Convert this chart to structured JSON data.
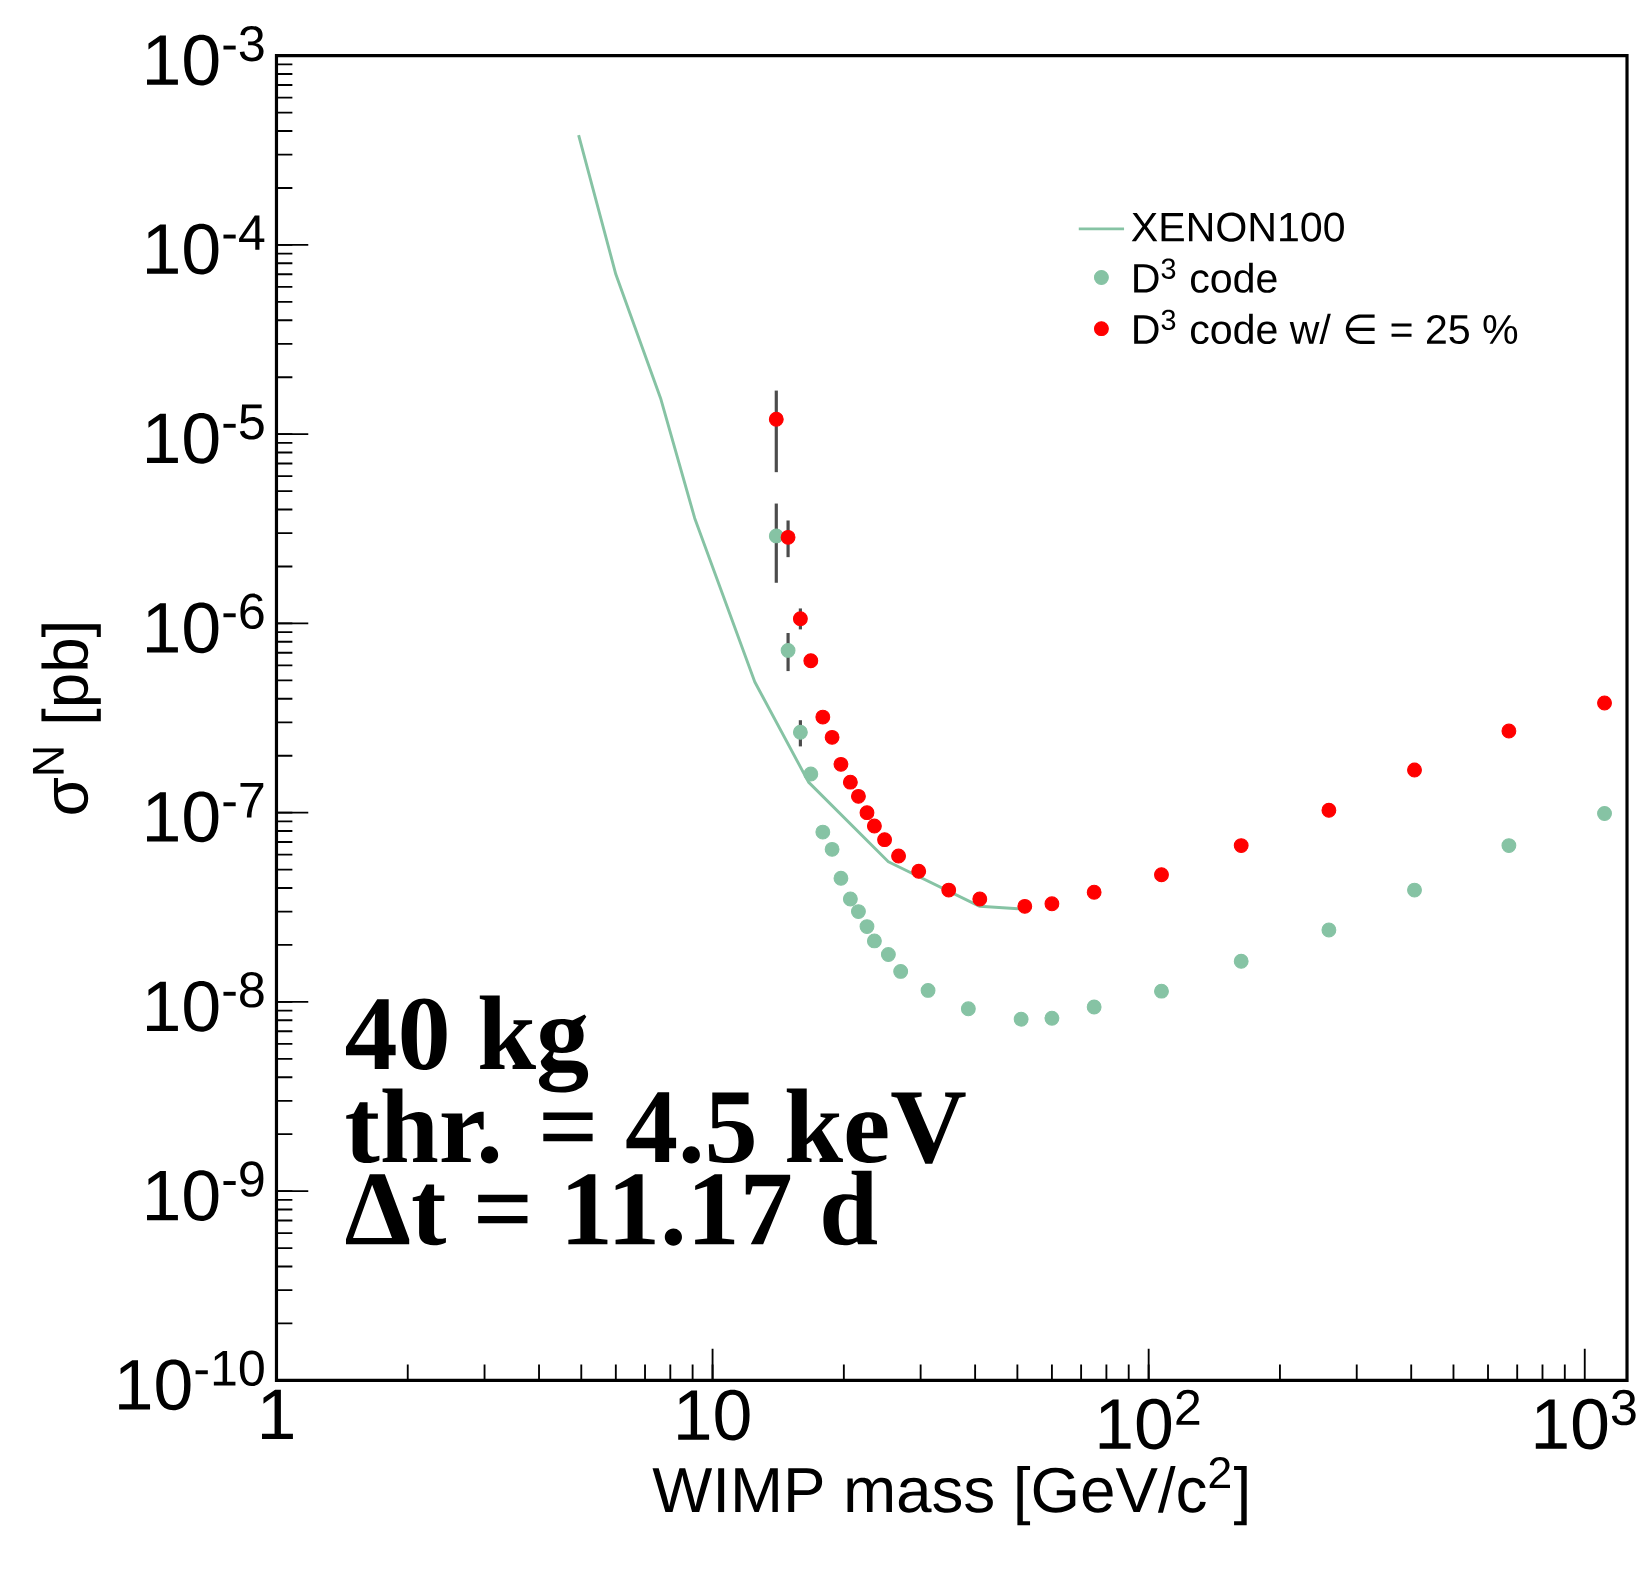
{
  "chart_data": {
    "type": "scatter",
    "xlabel": "WIMP mass [GeV/c$^{2}$]",
    "ylabel": "σ$^{N}$ [pb]",
    "log": "xy",
    "xlim": [
      1,
      1250
    ],
    "ylim": [
      1e-10,
      0.001
    ],
    "xticks": [
      1,
      10,
      {
        "value": 100,
        "label": "10$^{2}$"
      },
      {
        "value": 1000,
        "label": "10$^{3}$"
      }
    ],
    "yticks": [
      {
        "value": 1e-10,
        "label": "10$^{-10}$"
      },
      {
        "value": 1e-09,
        "label": "10$^{-9}$"
      },
      {
        "value": 1e-08,
        "label": "10$^{-8}$"
      },
      {
        "value": 1e-07,
        "label": "10$^{-7}$"
      },
      {
        "value": 1e-06,
        "label": "10$^{-6}$"
      },
      {
        "value": 1e-05,
        "label": "10$^{-5}$"
      },
      {
        "value": 0.0001,
        "label": "10$^{-4}$"
      },
      {
        "value": 0.001,
        "label": "10$^{-3}$"
      }
    ],
    "legend": "top right",
    "annotations": [
      "**40 kg**",
      "**thr. = 4.5 keV**",
      "**Δt = 11.17 d**"
    ],
    "series": [
      {
        "name": "XENON100",
        "type": "line",
        "marker": "none",
        "line_style": "solid",
        "color": "#86c3a4",
        "x": [
          4.93,
          6.0,
          7.6,
          9.1,
          12.5,
          16.6,
          25.3,
          41,
          51
        ],
        "values": [
          0.00038,
          7e-05,
          1.55e-05,
          3.6e-06,
          4.9e-07,
          1.45e-07,
          5.5e-08,
          3.2e-08,
          3.1e-08
        ]
      },
      {
        "name": "D$^{3}$ code",
        "marker": "circle",
        "color": "#86c3a4",
        "x": [
          14.0,
          14.9,
          15.9,
          16.8,
          17.9,
          18.8,
          19.7,
          20.7,
          21.6,
          22.6,
          23.5,
          25.3,
          27,
          31.2,
          38.6,
          51,
          60,
          75,
          107,
          163,
          259,
          407,
          670,
          1110
        ],
        "values": [
          2.9e-06,
          7.2e-07,
          2.66e-07,
          1.6e-07,
          7.9e-08,
          6.4e-08,
          4.5e-08,
          3.5e-08,
          3e-08,
          2.5e-08,
          2.1e-08,
          1.78e-08,
          1.45e-08,
          1.15e-08,
          9.2e-09,
          8.1e-09,
          8.2e-09,
          9.4e-09,
          1.14e-08,
          1.64e-08,
          2.4e-08,
          3.9e-08,
          6.7e-08,
          9.9e-08
        ],
        "errors": [
          [
            1.64e-06,
            4.3e-06
          ],
          [
            5.6e-07,
            8.9e-07
          ],
          [
            2.24e-07,
            3.08e-07
          ],
          null,
          null,
          null,
          null,
          null,
          null,
          null,
          null,
          null,
          null,
          null,
          null,
          null,
          null,
          null,
          null,
          null,
          null,
          null,
          null,
          null
        ]
      },
      {
        "name": "D$^{3}$ code w/ ∈ = 25 %",
        "marker": "circle",
        "color": "#ff0000",
        "x": [
          14.0,
          14.9,
          15.9,
          16.8,
          17.9,
          18.8,
          19.7,
          20.7,
          21.6,
          22.6,
          23.5,
          24.8,
          26.7,
          29.7,
          34.8,
          41,
          52,
          60,
          75,
          107,
          163,
          259,
          407,
          670,
          1110
        ],
        "values": [
          1.2e-05,
          2.85e-06,
          1.06e-06,
          6.35e-07,
          3.2e-07,
          2.5e-07,
          1.8e-07,
          1.45e-07,
          1.22e-07,
          1e-07,
          8.5e-08,
          7.2e-08,
          5.9e-08,
          4.9e-08,
          3.9e-08,
          3.5e-08,
          3.2e-08,
          3.3e-08,
          3.8e-08,
          4.7e-08,
          6.7e-08,
          1.03e-07,
          1.68e-07,
          2.7e-07,
          3.8e-07
        ],
        "errors": [
          [
            6.3e-06,
            1.7e-05
          ],
          [
            2.24e-06,
            3.5e-06
          ],
          [
            9.3e-07,
            1.2e-06
          ],
          null,
          null,
          null,
          null,
          null,
          null,
          null,
          null,
          null,
          null,
          null,
          null,
          null,
          null,
          null,
          null,
          null,
          null,
          null,
          null,
          null,
          null
        ]
      }
    ]
  }
}
